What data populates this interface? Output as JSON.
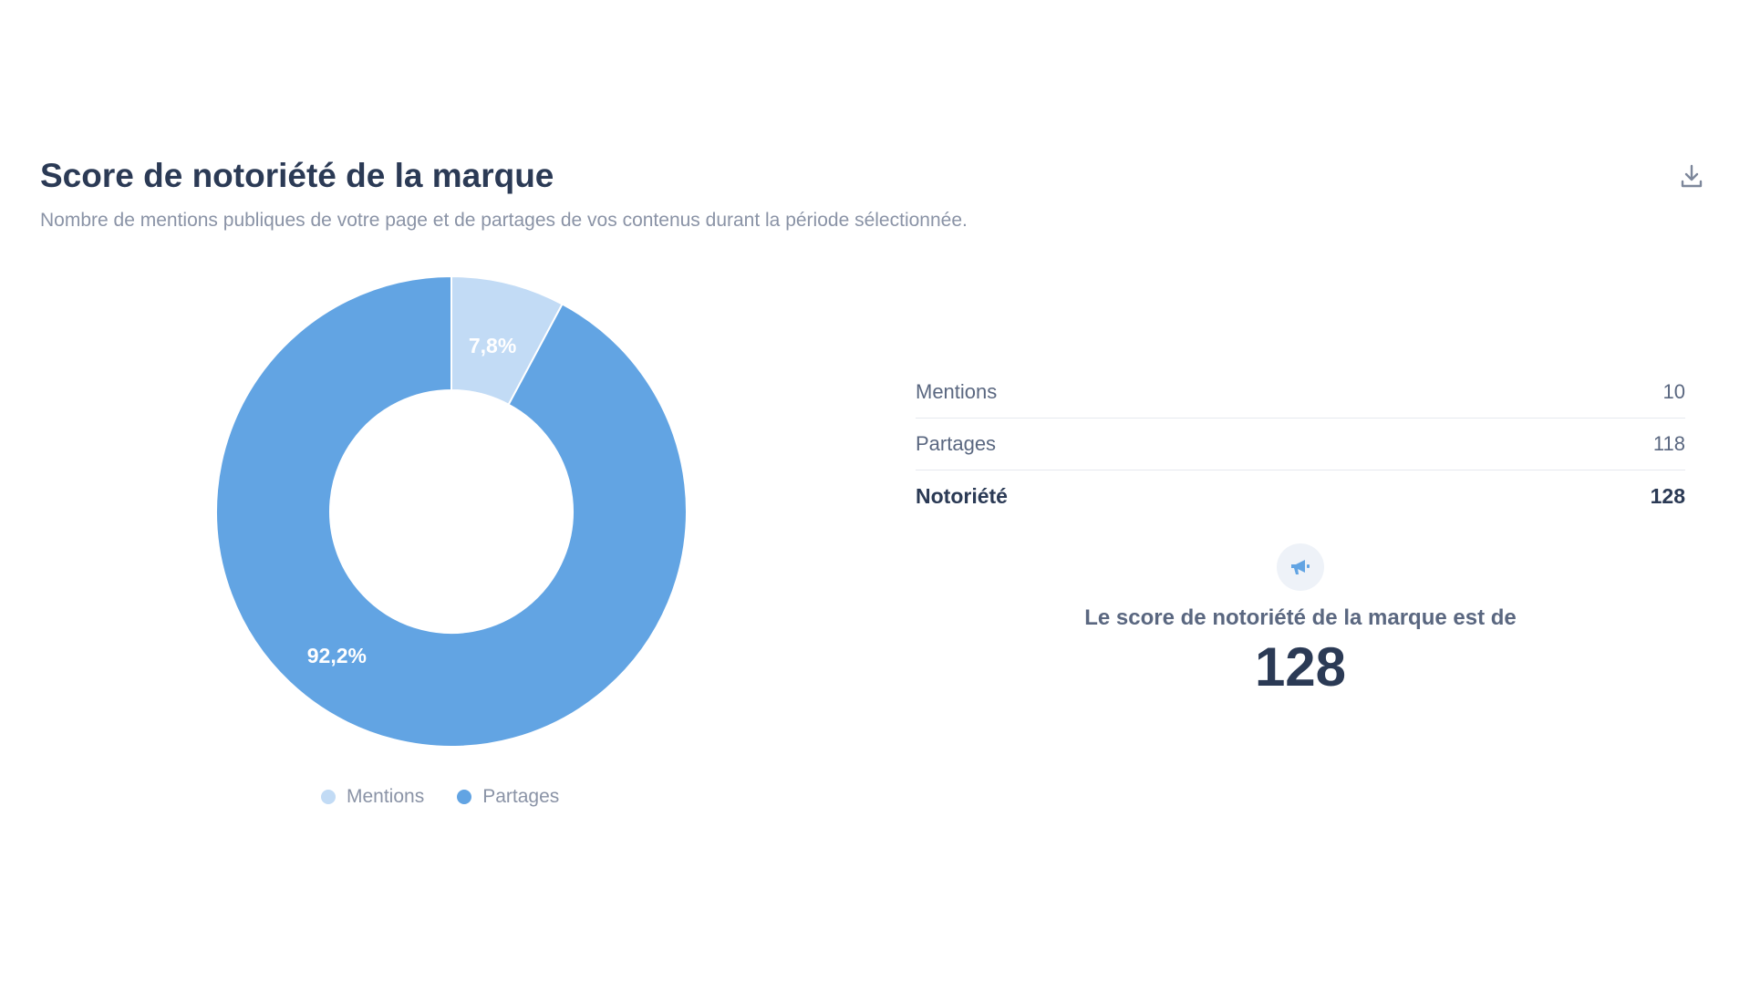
{
  "header": {
    "title": "Score de notoriété de la marque",
    "subtitle": "Nombre de mentions publiques de votre page et de partages de vos contenus durant la période sélectionnée.",
    "download_icon": "download-icon"
  },
  "chart_data": {
    "type": "pie",
    "variant": "donut",
    "categories": [
      "Mentions",
      "Partages"
    ],
    "values": [
      10,
      118
    ],
    "percent_labels": [
      "7,8%",
      "92,2%"
    ],
    "colors": [
      "#c2dbf5",
      "#62a4e3"
    ],
    "legend_position": "bottom",
    "legend": [
      "Mentions",
      "Partages"
    ]
  },
  "stats": {
    "rows": [
      {
        "label": "Mentions",
        "value": "10"
      },
      {
        "label": "Partages",
        "value": "118"
      },
      {
        "label": "Notoriété",
        "value": "128"
      }
    ]
  },
  "summary": {
    "icon": "megaphone-icon",
    "text": "Le score de notoriété de la marque est de",
    "value": "128"
  },
  "colors": {
    "mentions": "#c2dbf5",
    "partages": "#62a4e3",
    "text_dark": "#2b3a55",
    "text_muted": "#8a93a6"
  }
}
